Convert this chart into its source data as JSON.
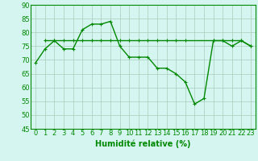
{
  "x": [
    0,
    1,
    2,
    3,
    4,
    5,
    6,
    7,
    8,
    9,
    10,
    11,
    12,
    13,
    14,
    15,
    16,
    17,
    18,
    19,
    20,
    21,
    22,
    23
  ],
  "line1": [
    69,
    74,
    77,
    74,
    74,
    81,
    83,
    83,
    84,
    75,
    71,
    71,
    71,
    67,
    67,
    65,
    62,
    54,
    56,
    77,
    77,
    75,
    77,
    75
  ],
  "line2_x": [
    1,
    2,
    3,
    4,
    5,
    6,
    7,
    8,
    9,
    10,
    11,
    12,
    13,
    14,
    15,
    16,
    19,
    20,
    21,
    22,
    23
  ],
  "line2_y": [
    77,
    77,
    77,
    77,
    77,
    77,
    77,
    77,
    77,
    77,
    77,
    77,
    77,
    77,
    77,
    77,
    77,
    77,
    77,
    77,
    75
  ],
  "line_color": "#008800",
  "bg_color": "#d4f5f0",
  "grid_color": "#aaccbb",
  "xlabel": "Humidité relative (%)",
  "ylim": [
    45,
    90
  ],
  "xlim": [
    -0.5,
    23.5
  ],
  "yticks": [
    45,
    50,
    55,
    60,
    65,
    70,
    75,
    80,
    85,
    90
  ],
  "xticks": [
    0,
    1,
    2,
    3,
    4,
    5,
    6,
    7,
    8,
    9,
    10,
    11,
    12,
    13,
    14,
    15,
    16,
    17,
    18,
    19,
    20,
    21,
    22,
    23
  ],
  "xlabel_fontsize": 7,
  "tick_fontsize": 6,
  "line_width": 1.0,
  "marker_size": 3
}
